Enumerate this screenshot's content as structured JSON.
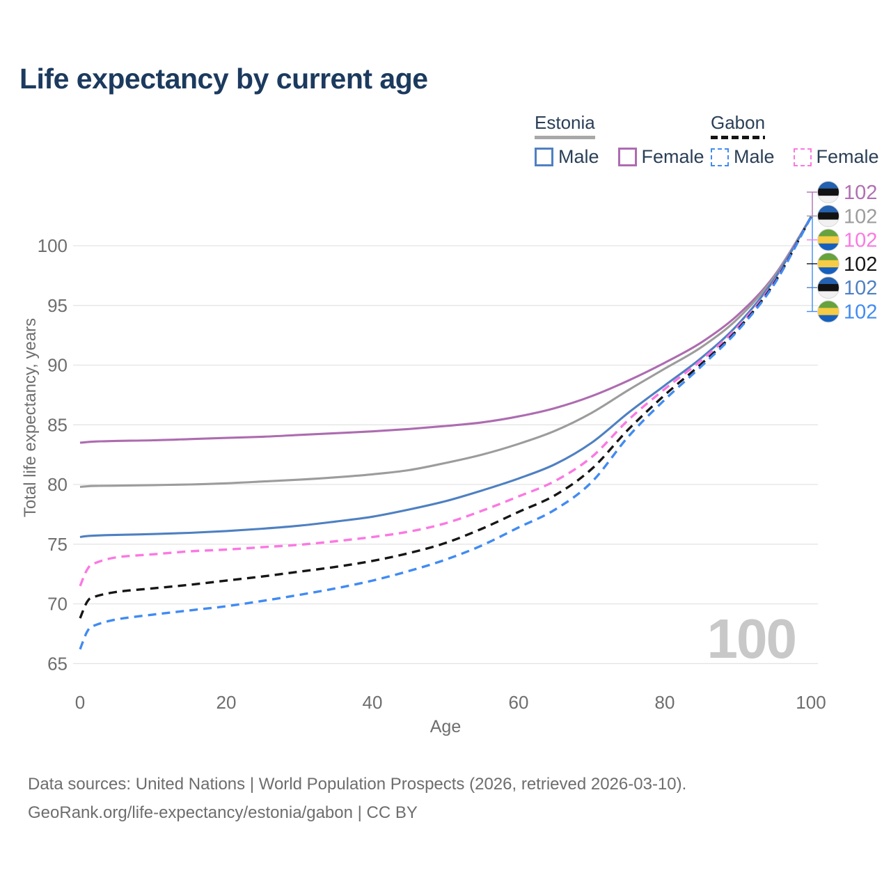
{
  "title": "Life expectancy by current age",
  "watermark": "100",
  "legend": {
    "groups": [
      {
        "name": "Estonia",
        "underline_style": "solid",
        "underline_color": "#a8a8a8",
        "items": [
          {
            "label": "Male",
            "color": "#4e80c2",
            "line_style": "solid"
          },
          {
            "label": "Female",
            "color": "#ad6cb0",
            "line_style": "solid"
          }
        ]
      },
      {
        "name": "Gabon",
        "underline_style": "dashed",
        "underline_color": "#141414",
        "items": [
          {
            "label": "Male",
            "color": "#418bf2",
            "line_style": "dashed"
          },
          {
            "label": "Female",
            "color": "#fb78e2",
            "line_style": "dashed"
          }
        ]
      }
    ]
  },
  "footer": {
    "line1": "Data sources: United Nations | World Population Prospects (2026, retrieved 2026-03-10).",
    "line2": "GeoRank.org/life-expectancy/estonia/gabon | CC BY"
  },
  "flags": {
    "estonia": [
      "#2461ae",
      "#121212",
      "#f1f1f1"
    ],
    "gabon": [
      "#66a23e",
      "#f6cb45",
      "#1660bd"
    ]
  },
  "chart_data": {
    "type": "line",
    "title": "Life expectancy by current age",
    "xlabel": "Age",
    "ylabel": "Total life expectancy, years",
    "xlim": [
      0,
      100
    ],
    "ylim": [
      65,
      102.5
    ],
    "xticks": [
      0,
      20,
      40,
      60,
      80,
      100
    ],
    "yticks": [
      65,
      70,
      75,
      80,
      85,
      90,
      95,
      100
    ],
    "grid": true,
    "grid_color": "#e4e4e4",
    "axis_text_color": "#6e6e6e",
    "x": [
      0,
      1,
      2,
      5,
      10,
      15,
      20,
      25,
      30,
      35,
      40,
      45,
      50,
      55,
      60,
      65,
      70,
      75,
      80,
      85,
      90,
      95,
      100
    ],
    "series": [
      {
        "name": "Estonia Female",
        "country": "estonia",
        "color": "#ad6cb0",
        "dash": "solid",
        "values": [
          83.5,
          83.55,
          83.6,
          83.65,
          83.7,
          83.8,
          83.9,
          84.0,
          84.15,
          84.3,
          84.45,
          84.65,
          84.9,
          85.2,
          85.7,
          86.4,
          87.4,
          88.7,
          90.2,
          91.9,
          94.2,
          97.5,
          102.4
        ]
      },
      {
        "name": "Estonia Both sexes",
        "country": "estonia",
        "color": "#9c9c9c",
        "dash": "solid",
        "values": [
          79.8,
          79.85,
          79.88,
          79.9,
          79.95,
          80.0,
          80.1,
          80.25,
          80.4,
          80.6,
          80.85,
          81.2,
          81.8,
          82.5,
          83.4,
          84.5,
          86.0,
          87.9,
          89.7,
          91.5,
          93.9,
          97.4,
          102.4
        ]
      },
      {
        "name": "Estonia Male",
        "country": "estonia",
        "color": "#4e80c2",
        "dash": "solid",
        "values": [
          75.6,
          75.68,
          75.72,
          75.78,
          75.85,
          75.95,
          76.1,
          76.3,
          76.55,
          76.9,
          77.3,
          77.9,
          78.6,
          79.5,
          80.5,
          81.7,
          83.5,
          86.0,
          88.3,
          90.6,
          93.4,
          97.2,
          102.4
        ]
      },
      {
        "name": "Gabon Female",
        "country": "gabon",
        "color": "#fb78e2",
        "dash": "dashed",
        "values": [
          71.5,
          72.9,
          73.4,
          73.9,
          74.15,
          74.4,
          74.55,
          74.75,
          74.95,
          75.25,
          75.6,
          76.05,
          76.75,
          77.8,
          79.0,
          80.3,
          82.3,
          85.4,
          88.0,
          90.4,
          93.2,
          97.0,
          102.4
        ]
      },
      {
        "name": "Gabon Both sexes",
        "country": "gabon",
        "color": "#161616",
        "dash": "dashed",
        "values": [
          68.8,
          70.2,
          70.6,
          71.0,
          71.3,
          71.6,
          71.95,
          72.3,
          72.7,
          73.1,
          73.6,
          74.25,
          75.1,
          76.3,
          77.7,
          79.1,
          81.3,
          84.6,
          87.5,
          90.1,
          93.0,
          96.9,
          102.4
        ]
      },
      {
        "name": "Gabon Male",
        "country": "gabon",
        "color": "#418bf2",
        "dash": "dashed",
        "values": [
          66.2,
          67.7,
          68.2,
          68.7,
          69.1,
          69.45,
          69.8,
          70.25,
          70.75,
          71.3,
          71.95,
          72.75,
          73.7,
          74.9,
          76.4,
          77.9,
          80.2,
          84.0,
          87.1,
          89.9,
          92.9,
          96.8,
          102.4
        ]
      }
    ],
    "end_labels": [
      {
        "series": "Estonia Female",
        "country": "estonia",
        "value": "102",
        "color": "#b06fb3"
      },
      {
        "series": "Estonia Both sexes",
        "country": "estonia",
        "value": "102",
        "color": "#9c9c9c"
      },
      {
        "series": "Gabon Female",
        "country": "gabon",
        "value": "102",
        "color": "#fb78e2"
      },
      {
        "series": "Gabon Both sexes",
        "country": "gabon",
        "value": "102",
        "color": "#161616"
      },
      {
        "series": "Estonia Male",
        "country": "estonia",
        "value": "102",
        "color": "#4e80c2"
      },
      {
        "series": "Gabon Male",
        "country": "gabon",
        "value": "102",
        "color": "#418bf2"
      }
    ]
  }
}
